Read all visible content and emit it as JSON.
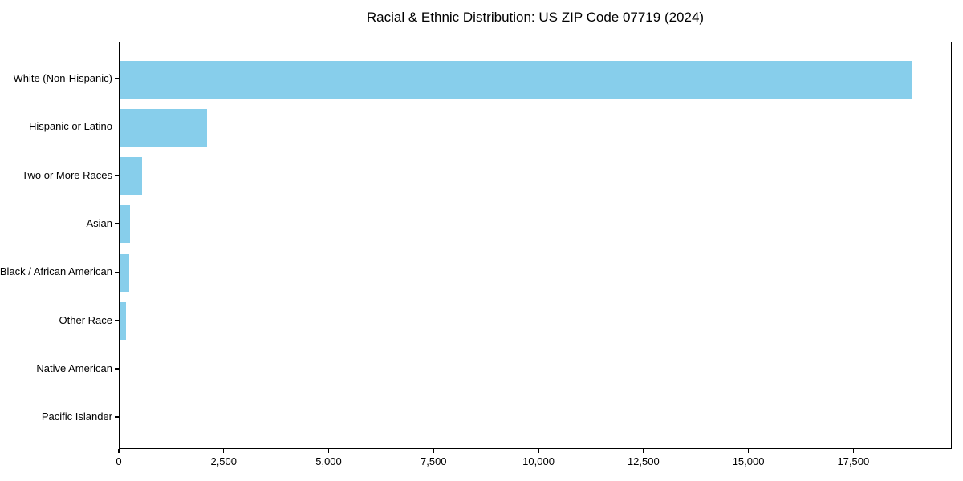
{
  "title": "Racial & Ethnic Distribution: US ZIP Code 07719 (2024)",
  "chart_data": {
    "type": "bar",
    "orientation": "horizontal",
    "title": "Racial & Ethnic Distribution: US ZIP Code 07719 (2024)",
    "xlabel": "",
    "ylabel": "",
    "categories": [
      "White (Non-Hispanic)",
      "Hispanic or Latino",
      "Two or More Races",
      "Asian",
      "Black / African American",
      "Other Race",
      "Native American",
      "Pacific Islander"
    ],
    "values": [
      18900,
      2095,
      540,
      248,
      232,
      152,
      8,
      3
    ],
    "xlim": [
      0,
      19845
    ],
    "x_ticks": [
      0,
      2500,
      5000,
      7500,
      10000,
      12500,
      15000,
      17500
    ],
    "x_tick_labels": [
      "0",
      "2,500",
      "5,000",
      "7,500",
      "10,000",
      "12,500",
      "15,000",
      "17,500"
    ],
    "grid": false,
    "legend": null,
    "bar_color": "#87CEEB",
    "axis_color": "#000000",
    "background_color": "#ffffff",
    "text_color": "#000000"
  }
}
